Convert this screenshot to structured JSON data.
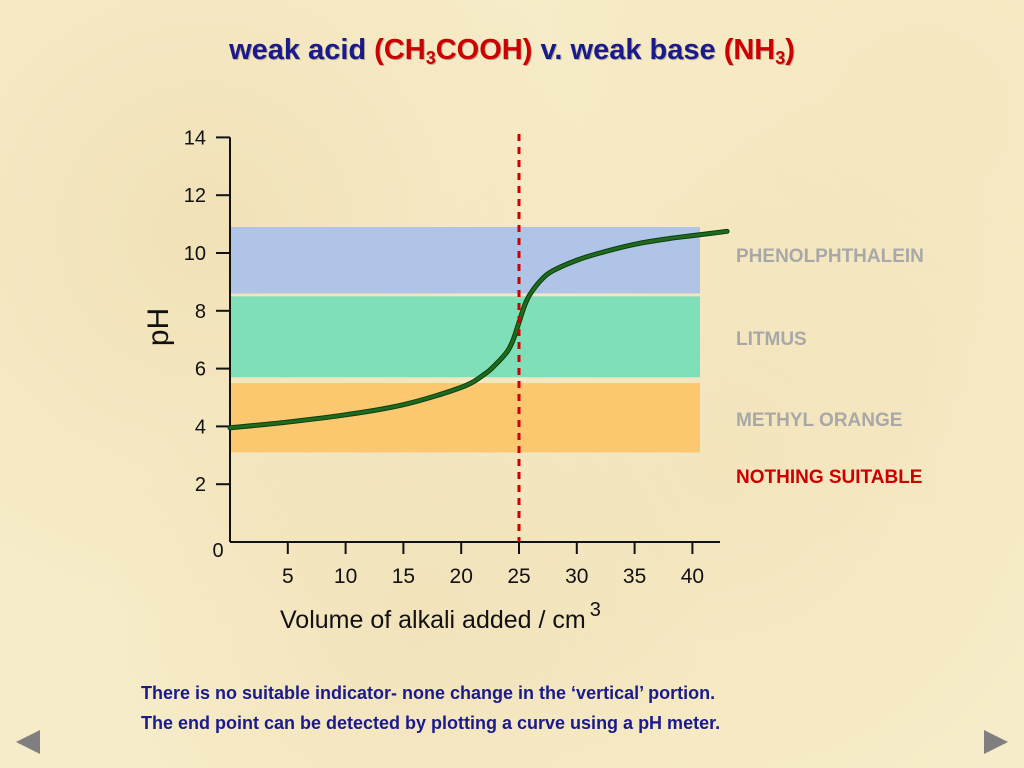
{
  "title": {
    "part1": "weak acid ",
    "part2_pre": "(CH",
    "part2_sub": "3",
    "part2_post": "COOH)",
    "part3": " v. weak base ",
    "part4_pre": "(NH",
    "part4_sub": "3",
    "part4_post": ")"
  },
  "chart_data": {
    "type": "line",
    "xlabel": "Volume of alkali added / cm",
    "xlabel_sup": "3",
    "ylabel": "pH",
    "xlim": [
      0,
      42
    ],
    "ylim": [
      0,
      14
    ],
    "xticks": [
      5,
      10,
      15,
      20,
      25,
      30,
      35,
      40
    ],
    "yticks": [
      2,
      4,
      6,
      8,
      10,
      12,
      14
    ],
    "origin_label": "0",
    "equivalence_x": 25,
    "series": [
      {
        "x": [
          0,
          5,
          10,
          15,
          20,
          22,
          23,
          24,
          24.5,
          25,
          25.5,
          26,
          27,
          28,
          30,
          32,
          35,
          38,
          40,
          43
        ],
        "y": [
          3.95,
          4.15,
          4.4,
          4.75,
          5.35,
          5.8,
          6.15,
          6.6,
          7.0,
          7.6,
          8.2,
          8.6,
          9.1,
          9.4,
          9.75,
          10.0,
          10.3,
          10.5,
          10.6,
          10.75
        ]
      }
    ],
    "bands": [
      {
        "indicator": "phenolphthalein",
        "from": 8.6,
        "to": 10.9,
        "color": "#b0c4e8"
      },
      {
        "indicator": "litmus",
        "from": 5.7,
        "to": 8.5,
        "color": "#7fdfb8"
      },
      {
        "indicator": "methyl orange",
        "from": 3.1,
        "to": 5.5,
        "color": "#fbc870"
      }
    ],
    "curve_color": "#1e6b1e",
    "line_color": "#cc0000"
  },
  "labels": {
    "phenolphthalein": "PHENOLPHTHALEIN",
    "litmus": "LITMUS",
    "methyl_orange": "METHYL ORANGE",
    "nothing": "NOTHING SUITABLE",
    "label_color": "#a8a8a8",
    "nothing_color": "#cc0000"
  },
  "caption": {
    "line1": "There is no suitable indicator-  none change in the ‘vertical’ portion.",
    "line2": "The end point can be detected by plotting a curve using a pH meter."
  },
  "nav": {
    "prev_icon": "triangle-left-icon",
    "next_icon": "triangle-right-icon"
  }
}
